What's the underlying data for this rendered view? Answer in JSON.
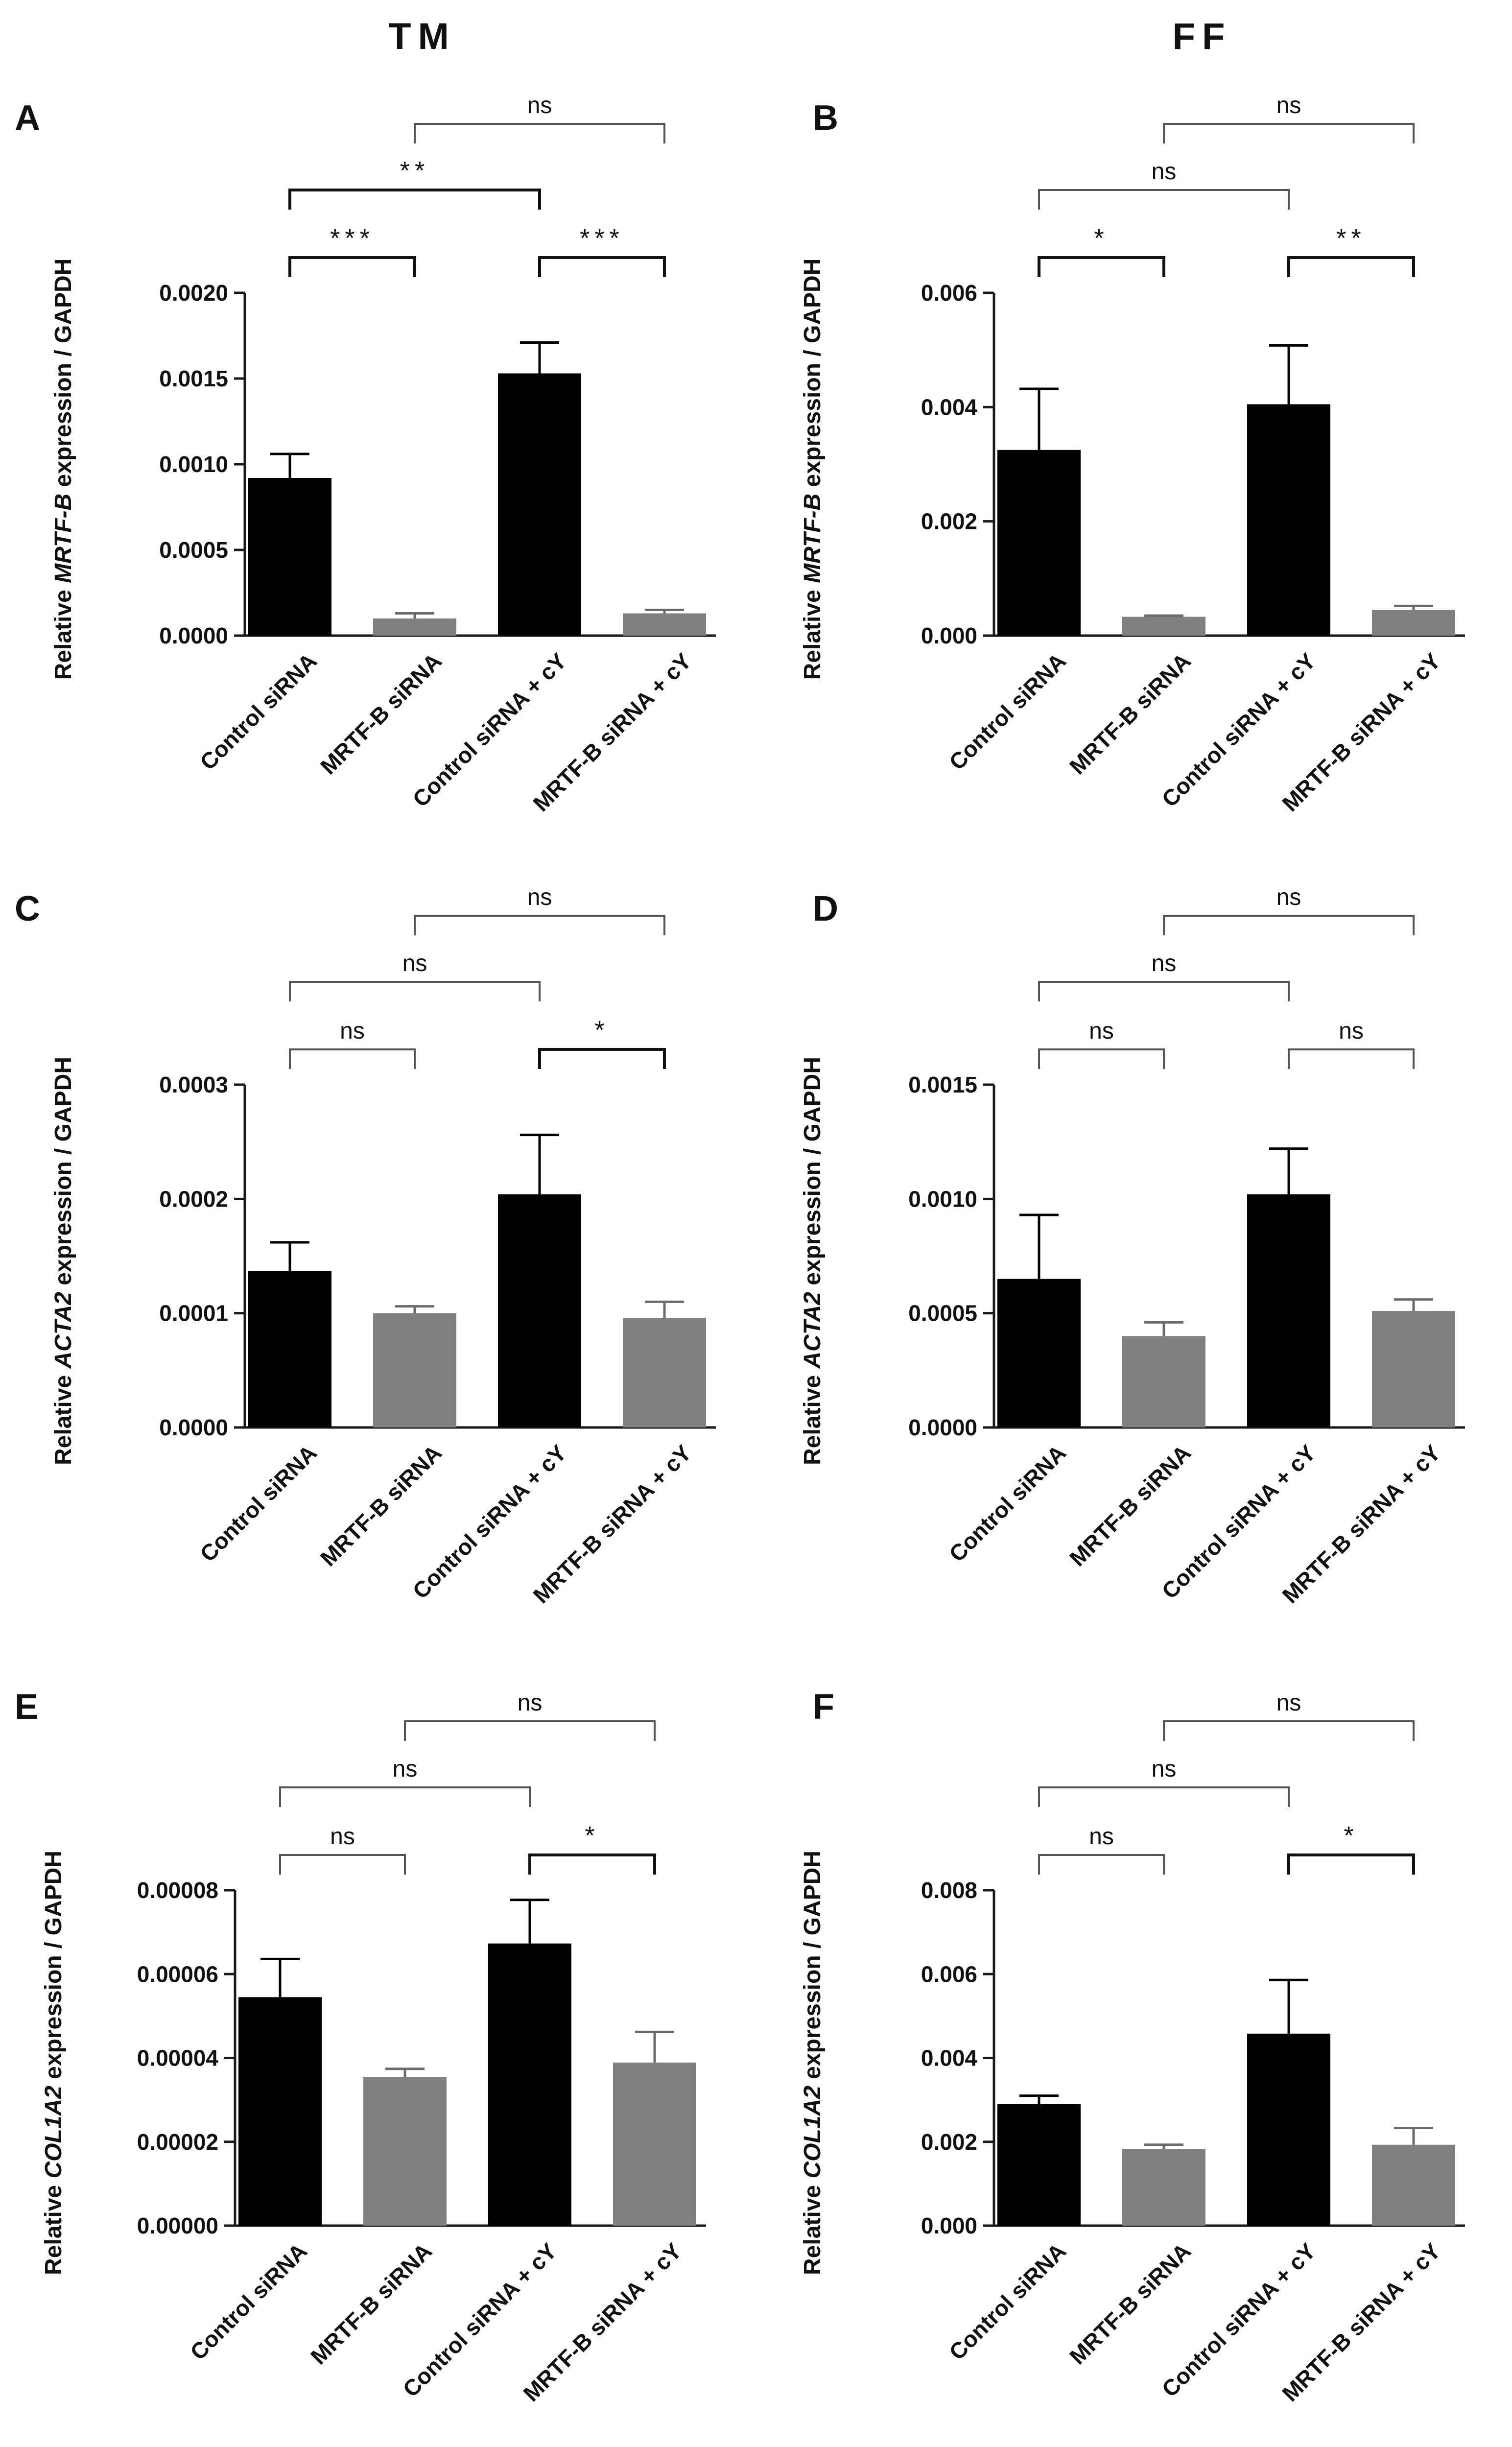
{
  "column_titles": [
    "TM",
    "FF"
  ],
  "colors": {
    "black_bar": "#000000",
    "gray_bar": "#808080",
    "axis": "#1a1a1a",
    "bracket": "#555555"
  },
  "categories": [
    "Control siRNA",
    "MRTF-B siRNA",
    "Control siRNA + cY",
    "MRTF-B siRNA + cY"
  ],
  "chart_data": [
    {
      "panel": "A",
      "type": "bar",
      "gene": "MRTF-B",
      "column": "TM",
      "ylabel": {
        "prefix": "Relative ",
        "gene": "MRTF-B",
        "suffix": " expression / GAPDH"
      },
      "ylim": [
        0,
        0.002
      ],
      "yticks": [
        0,
        0.0005,
        0.001,
        0.0015,
        0.002
      ],
      "yticklabels": [
        "0.0000",
        "0.0005",
        "0.0010",
        "0.0015",
        "0.0020"
      ],
      "categories": [
        "Control siRNA",
        "MRTF-B siRNA",
        "Control siRNA + cY",
        "MRTF-B siRNA + cY"
      ],
      "values": [
        0.00092,
        0.0001,
        0.00153,
        0.00013
      ],
      "errors": [
        0.00014,
        3e-05,
        0.00018,
        2e-05
      ],
      "comparisons": [
        {
          "from": 0,
          "to": 1,
          "label": "***",
          "level": 0
        },
        {
          "from": 2,
          "to": 3,
          "label": "***",
          "level": 0
        },
        {
          "from": 0,
          "to": 2,
          "label": "**",
          "level": 1
        },
        {
          "from": 1,
          "to": 3,
          "label": "ns",
          "level": 2
        }
      ]
    },
    {
      "panel": "B",
      "type": "bar",
      "gene": "MRTF-B",
      "column": "FF",
      "ylabel": {
        "prefix": "Relative ",
        "gene": "MRTF-B",
        "suffix": " expression / GAPDH"
      },
      "ylim": [
        0,
        0.006
      ],
      "yticks": [
        0,
        0.002,
        0.004,
        0.006
      ],
      "yticklabels": [
        "0.000",
        "0.002",
        "0.004",
        "0.006"
      ],
      "categories": [
        "Control siRNA",
        "MRTF-B siRNA",
        "Control siRNA + cY",
        "MRTF-B siRNA + cY"
      ],
      "values": [
        0.00325,
        0.00033,
        0.00405,
        0.00045
      ],
      "errors": [
        0.00107,
        2e-05,
        0.00103,
        7e-05
      ],
      "comparisons": [
        {
          "from": 0,
          "to": 1,
          "label": "*",
          "level": 0
        },
        {
          "from": 2,
          "to": 3,
          "label": "**",
          "level": 0
        },
        {
          "from": 0,
          "to": 2,
          "label": "ns",
          "level": 1
        },
        {
          "from": 1,
          "to": 3,
          "label": "ns",
          "level": 2
        }
      ]
    },
    {
      "panel": "C",
      "type": "bar",
      "gene": "ACTA2",
      "column": "TM",
      "ylabel": {
        "prefix": "Relative ",
        "gene": "ACTA2",
        "suffix": " expression / GAPDH"
      },
      "ylim": [
        0,
        0.0003
      ],
      "yticks": [
        0,
        0.0001,
        0.0002,
        0.0003
      ],
      "yticklabels": [
        "0.0000",
        "0.0001",
        "0.0002",
        "0.0003"
      ],
      "categories": [
        "Control siRNA",
        "MRTF-B siRNA",
        "Control siRNA + cY",
        "MRTF-B siRNA + cY"
      ],
      "values": [
        0.000137,
        0.0001,
        0.000204,
        9.6e-05
      ],
      "errors": [
        2.5e-05,
        6e-06,
        5.2e-05,
        1.4e-05
      ],
      "comparisons": [
        {
          "from": 0,
          "to": 1,
          "label": "ns",
          "level": 0
        },
        {
          "from": 2,
          "to": 3,
          "label": "*",
          "level": 0
        },
        {
          "from": 0,
          "to": 2,
          "label": "ns",
          "level": 1
        },
        {
          "from": 1,
          "to": 3,
          "label": "ns",
          "level": 2
        }
      ]
    },
    {
      "panel": "D",
      "type": "bar",
      "gene": "ACTA2",
      "column": "FF",
      "ylabel": {
        "prefix": "Relative ",
        "gene": "ACTA2",
        "suffix": " expression / GAPDH"
      },
      "ylim": [
        0,
        0.0015
      ],
      "yticks": [
        0,
        0.0005,
        0.001,
        0.0015
      ],
      "yticklabels": [
        "0.0000",
        "0.0005",
        "0.0010",
        "0.0015"
      ],
      "categories": [
        "Control siRNA",
        "MRTF-B siRNA",
        "Control siRNA + cY",
        "MRTF-B siRNA + cY"
      ],
      "values": [
        0.00065,
        0.0004,
        0.00102,
        0.00051
      ],
      "errors": [
        0.00028,
        6e-05,
        0.0002,
        5e-05
      ],
      "comparisons": [
        {
          "from": 0,
          "to": 1,
          "label": "ns",
          "level": 0
        },
        {
          "from": 2,
          "to": 3,
          "label": "ns",
          "level": 0
        },
        {
          "from": 0,
          "to": 2,
          "label": "ns",
          "level": 1
        },
        {
          "from": 1,
          "to": 3,
          "label": "ns",
          "level": 2
        }
      ]
    },
    {
      "panel": "E",
      "type": "bar",
      "gene": "COL1A2",
      "column": "TM",
      "ylabel": {
        "prefix": "Relative ",
        "gene": "COL1A2",
        "suffix": " expression / GAPDH"
      },
      "ylim": [
        0,
        8e-05
      ],
      "yticks": [
        0,
        2e-05,
        4e-05,
        6e-05,
        8e-05
      ],
      "yticklabels": [
        "0.00000",
        "0.00002",
        "0.00004",
        "0.00006",
        "0.00008"
      ],
      "categories": [
        "Control siRNA",
        "MRTF-B siRNA",
        "Control siRNA + cY",
        "MRTF-B siRNA + cY"
      ],
      "values": [
        5.45e-05,
        3.55e-05,
        6.73e-05,
        3.89e-05
      ],
      "errors": [
        9.1e-06,
        1.9e-06,
        1.04e-05,
        7.3e-06
      ],
      "comparisons": [
        {
          "from": 0,
          "to": 1,
          "label": "ns",
          "level": 0
        },
        {
          "from": 2,
          "to": 3,
          "label": "*",
          "level": 0
        },
        {
          "from": 0,
          "to": 2,
          "label": "ns",
          "level": 1
        },
        {
          "from": 1,
          "to": 3,
          "label": "ns",
          "level": 2
        }
      ]
    },
    {
      "panel": "F",
      "type": "bar",
      "gene": "COL1A2",
      "column": "FF",
      "ylabel": {
        "prefix": "Relative ",
        "gene": "COL1A2",
        "suffix": " expression / GAPDH"
      },
      "ylim": [
        0,
        0.008
      ],
      "yticks": [
        0,
        0.002,
        0.004,
        0.006,
        0.008
      ],
      "yticklabels": [
        "0.000",
        "0.002",
        "0.004",
        "0.006",
        "0.008"
      ],
      "categories": [
        "Control siRNA",
        "MRTF-B siRNA",
        "Control siRNA + cY",
        "MRTF-B siRNA + cY"
      ],
      "values": [
        0.0029,
        0.00183,
        0.00458,
        0.00193
      ],
      "errors": [
        0.0002,
        0.0001,
        0.00128,
        0.0004
      ],
      "comparisons": [
        {
          "from": 0,
          "to": 1,
          "label": "ns",
          "level": 0
        },
        {
          "from": 2,
          "to": 3,
          "label": "*",
          "level": 0
        },
        {
          "from": 0,
          "to": 2,
          "label": "ns",
          "level": 1
        },
        {
          "from": 1,
          "to": 3,
          "label": "ns",
          "level": 2
        }
      ]
    }
  ]
}
